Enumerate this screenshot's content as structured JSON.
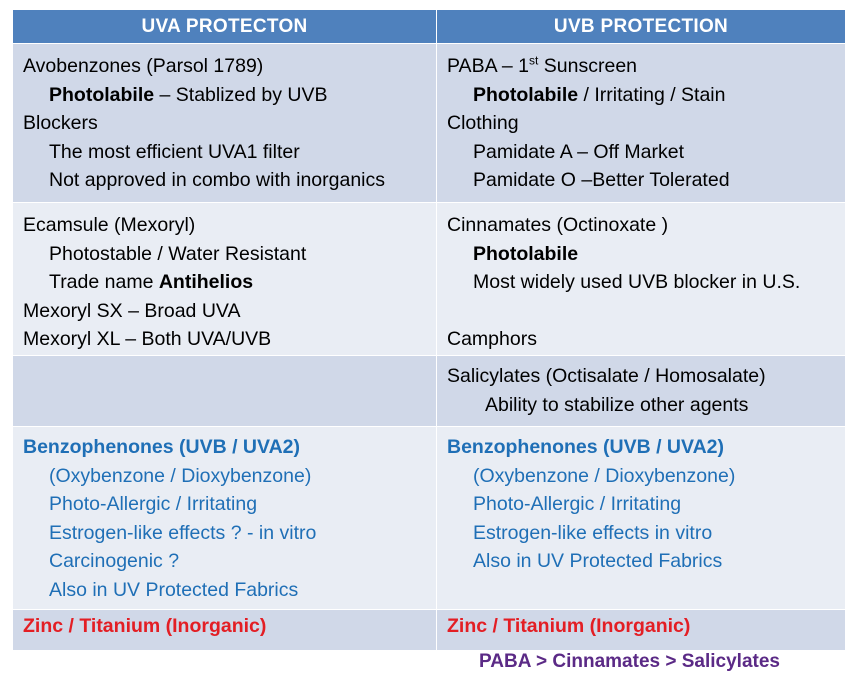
{
  "headers": {
    "uva": "UVA PROTECTON",
    "uvb": "UVB PROTECTION"
  },
  "row1": {
    "uva": {
      "l1": "Avobenzones (Parsol 1789)",
      "l2_bold": "Photolabile",
      "l2_rest": " – Stablized by UVB",
      "l3": "Blockers",
      "l4": "The most efficient UVA1 filter",
      "l5": "Not approved in combo with inorganics"
    },
    "uvb": {
      "l1_pre": "PABA – 1",
      "l1_sup": "st",
      "l1_post": " Sunscreen",
      "l2_bold": "Photolabile",
      "l2_rest": " / Irritating / Stain",
      "l3": "Clothing",
      "l4": "Pamidate A – Off Market",
      "l5": "Pamidate O –Better Tolerated"
    }
  },
  "row2": {
    "uva": {
      "l1": "Ecamsule (Mexoryl)",
      "l2": "Photostable / Water Resistant",
      "l3_pre": "Trade name ",
      "l3_bold": "Antihelios",
      "l4": "Mexoryl SX – Broad UVA",
      "l5": "Mexoryl XL – Both UVA/UVB"
    },
    "uvb": {
      "l1": "Cinnamates  (Octinoxate )",
      "l2_bold": "Photolabile",
      "l3": "Most widely used UVB blocker in U.S.",
      "l5": "Camphors"
    }
  },
  "row3": {
    "uvb": {
      "l1": "Salicylates (Octisalate / Homosalate)",
      "l2": "Ability to stabilize other agents"
    }
  },
  "row4": {
    "uva": {
      "title": "Benzophenones (UVB / UVA2)",
      "l2": "(Oxybenzone / Dioxybenzone)",
      "l3": "Photo-Allergic / Irritating",
      "l4": "Estrogen-like effects ? - in vitro",
      "l5": "Carcinogenic ?",
      "l6": "Also in UV Protected Fabrics"
    },
    "uvb": {
      "title": "Benzophenones (UVB / UVA2)",
      "l2": "(Oxybenzone / Dioxybenzone)",
      "l3": "Photo-Allergic / Irritating",
      "l4": "Estrogen-like effects in vitro",
      "l5": "Also in UV Protected Fabrics"
    }
  },
  "row5": {
    "uva": "Zinc / Titanium  (Inorganic)",
    "uvb": "Zinc / Titanium (Inorganic)"
  },
  "footer": "PABA > Cinnamates > Salicylates",
  "colors": {
    "header_bg": "#4f81bd",
    "row_dark": "#d0d8e8",
    "row_light": "#e9edf4",
    "blue_text": "#1f6fb6",
    "red_text": "#e31e24",
    "footer_text": "#5b2a86"
  }
}
